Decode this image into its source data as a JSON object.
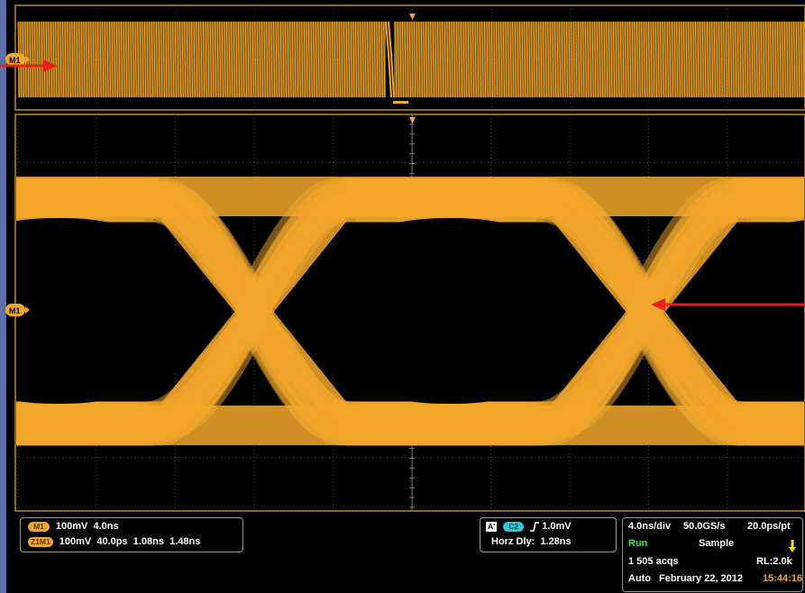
{
  "markers": {
    "m1_label": "M1"
  },
  "colors": {
    "trace": "#f2a72c",
    "arrow": "#ee1c1c",
    "frame": "#b88a2e",
    "left_strip": "#5c6fa8"
  },
  "left_readout": {
    "row1": {
      "badge": "M1",
      "text": "100mV  4.0ns"
    },
    "row2": {
      "badge": "Z1M1",
      "text": "100mV  40.0ps  1.08ns  1.48ns"
    }
  },
  "trigger": {
    "badge_a": "A'",
    "badge_c2": "C2",
    "slope_icon": "rising-edge-icon",
    "level": "1.0mV",
    "horz_dly": "Horz Dly:  1.28ns"
  },
  "status": {
    "timebase": "4.0ns/div",
    "sample_rate": "50.0GS/s",
    "resolution": "20.0ps/pt",
    "run_state": "Run",
    "acq_mode": "Sample",
    "acqs": "1 505 acqs",
    "record_length": "RL:2.0k",
    "trigger_mode": "Auto",
    "date": "February 22, 2012",
    "time": "15:44:16"
  }
}
